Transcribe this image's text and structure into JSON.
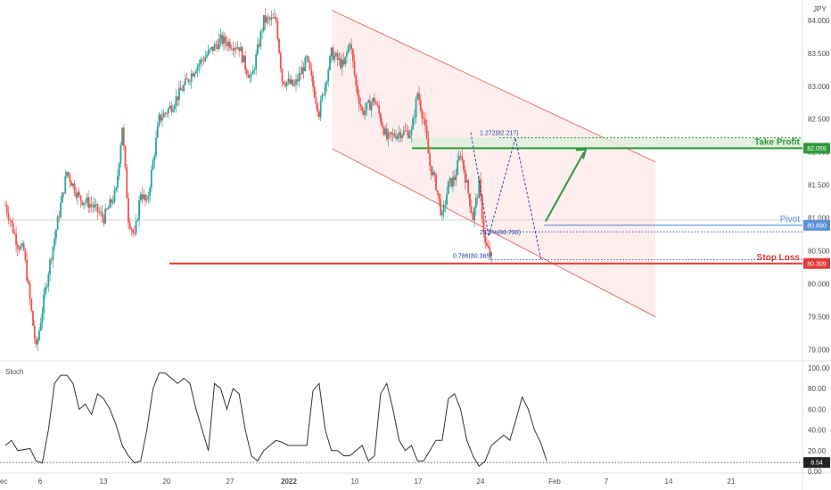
{
  "currency": "JPY",
  "colors": {
    "up": "#26a69a",
    "down": "#ef5350",
    "channel_fill": "#fde8e8",
    "channel_line": "#e57373",
    "take_profit": "#2e9a3a",
    "pivot": "#5b8fd9",
    "stop_loss": "#e53935",
    "zone": "#dfeedd",
    "fib": "#1f3fa0",
    "stoch": "#333333"
  },
  "chart_data": [
    {
      "type": "candlestick",
      "title": "",
      "ylim": [
        78.9,
        84.2
      ],
      "y_ticks": [
        "84.000",
        "83.500",
        "83.000",
        "82.500",
        "82.000",
        "81.500",
        "81.000",
        "80.500",
        "80.000",
        "79.500",
        "79.000"
      ],
      "x_ticks": [
        "ec",
        "6",
        "13",
        "20",
        "27",
        "2022",
        "10",
        "17",
        "24",
        "Feb",
        "7",
        "14",
        "21"
      ],
      "close_path": [
        [
          0,
          81.2
        ],
        [
          2,
          80.6
        ],
        [
          3,
          80.5
        ],
        [
          5,
          79.0
        ],
        [
          7,
          80.2
        ],
        [
          10,
          81.7
        ],
        [
          12,
          81.3
        ],
        [
          14,
          81.2
        ],
        [
          16,
          81.0
        ],
        [
          18,
          81.4
        ],
        [
          19,
          82.4
        ],
        [
          20,
          81.0
        ],
        [
          21,
          80.7
        ],
        [
          22,
          81.4
        ],
        [
          23,
          81.2
        ],
        [
          25,
          82.5
        ],
        [
          27,
          82.7
        ],
        [
          29,
          83.0
        ],
        [
          31,
          83.3
        ],
        [
          33,
          83.5
        ],
        [
          35,
          83.7
        ],
        [
          38,
          83.6
        ],
        [
          39,
          83.3
        ],
        [
          40,
          83.1
        ],
        [
          42,
          84.0
        ],
        [
          44,
          84.0
        ],
        [
          45,
          83.1
        ],
        [
          47,
          83.0
        ],
        [
          49,
          83.4
        ],
        [
          51,
          82.6
        ],
        [
          53,
          83.5
        ],
        [
          55,
          83.3
        ],
        [
          56,
          83.7
        ],
        [
          57,
          83.0
        ],
        [
          58,
          82.6
        ],
        [
          60,
          82.8
        ],
        [
          62,
          82.2
        ],
        [
          64,
          82.3
        ],
        [
          66,
          82.3
        ],
        [
          67,
          82.9
        ],
        [
          68,
          82.5
        ],
        [
          69,
          81.8
        ],
        [
          70,
          81.5
        ],
        [
          71,
          81.0
        ],
        [
          72,
          81.5
        ],
        [
          73,
          81.6
        ],
        [
          74,
          82.0
        ],
        [
          75,
          81.5
        ],
        [
          76,
          81.0
        ],
        [
          77,
          81.5
        ],
        [
          78,
          80.6
        ],
        [
          79,
          80.4
        ]
      ],
      "candles_per_day_px": 6.9,
      "annotations": {
        "fib_1272": "1.272(82.217)",
        "fib_236": "23.6%(80.790)",
        "fib_786": "0.786(80.365)"
      },
      "levels": [
        {
          "label": "Take Profit",
          "value": 82.059,
          "tag": "82.059"
        },
        {
          "label": "Pivot",
          "value": 80.89,
          "tag": "80.890"
        },
        {
          "label": "Stop Loss",
          "value": 80.309,
          "tag": "80.309"
        }
      ],
      "channel": {
        "upper_start": [
          45,
          84.15
        ],
        "upper_end": [
          88,
          81.85
        ],
        "lower_start": [
          45,
          82.05
        ],
        "lower_end": [
          88,
          79.5
        ]
      }
    },
    {
      "type": "line",
      "title": "Stoch",
      "ylim": [
        0,
        100
      ],
      "y_ticks": [
        "100.00",
        "80.00",
        "60.00",
        "40.00",
        "20.00",
        "0.00"
      ],
      "last_value": 8.54,
      "last_tag": "8.54",
      "values": [
        [
          0,
          25
        ],
        [
          1,
          30
        ],
        [
          2,
          20
        ],
        [
          4,
          22
        ],
        [
          5,
          10
        ],
        [
          6,
          8
        ],
        [
          7,
          40
        ],
        [
          8,
          85
        ],
        [
          9,
          93
        ],
        [
          10,
          93
        ],
        [
          11,
          85
        ],
        [
          12,
          60
        ],
        [
          13,
          65
        ],
        [
          14,
          55
        ],
        [
          15,
          75
        ],
        [
          16,
          70
        ],
        [
          17,
          60
        ],
        [
          18,
          45
        ],
        [
          19,
          25
        ],
        [
          20,
          15
        ],
        [
          21,
          8
        ],
        [
          22,
          10
        ],
        [
          23,
          40
        ],
        [
          24,
          80
        ],
        [
          25,
          95
        ],
        [
          26,
          95
        ],
        [
          27,
          90
        ],
        [
          28,
          85
        ],
        [
          29,
          90
        ],
        [
          30,
          85
        ],
        [
          31,
          60
        ],
        [
          32,
          40
        ],
        [
          33,
          20
        ],
        [
          34,
          85
        ],
        [
          35,
          80
        ],
        [
          36,
          60
        ],
        [
          37,
          80
        ],
        [
          38,
          75
        ],
        [
          39,
          40
        ],
        [
          40,
          15
        ],
        [
          41,
          10
        ],
        [
          42,
          20
        ],
        [
          43,
          25
        ],
        [
          44,
          30
        ],
        [
          45,
          28
        ],
        [
          46,
          25
        ],
        [
          47,
          25
        ],
        [
          48,
          25
        ],
        [
          49,
          25
        ],
        [
          50,
          78
        ],
        [
          51,
          85
        ],
        [
          52,
          40
        ],
        [
          53,
          20
        ],
        [
          54,
          20
        ],
        [
          55,
          15
        ],
        [
          56,
          15
        ],
        [
          57,
          20
        ],
        [
          58,
          25
        ],
        [
          59,
          10
        ],
        [
          60,
          15
        ],
        [
          61,
          75
        ],
        [
          62,
          85
        ],
        [
          63,
          60
        ],
        [
          64,
          30
        ],
        [
          65,
          20
        ],
        [
          66,
          25
        ],
        [
          67,
          10
        ],
        [
          68,
          10
        ],
        [
          69,
          20
        ],
        [
          70,
          30
        ],
        [
          71,
          30
        ],
        [
          72,
          70
        ],
        [
          73,
          75
        ],
        [
          74,
          60
        ],
        [
          75,
          30
        ],
        [
          76,
          15
        ],
        [
          77,
          5
        ],
        [
          78,
          10
        ],
        [
          79,
          25
        ],
        [
          80,
          30
        ],
        [
          81,
          35
        ],
        [
          82,
          30
        ],
        [
          83,
          50
        ],
        [
          84,
          72
        ],
        [
          85,
          60
        ],
        [
          86,
          40
        ],
        [
          87,
          28
        ],
        [
          88,
          10
        ]
      ]
    }
  ],
  "stoch_label": "Stoch"
}
